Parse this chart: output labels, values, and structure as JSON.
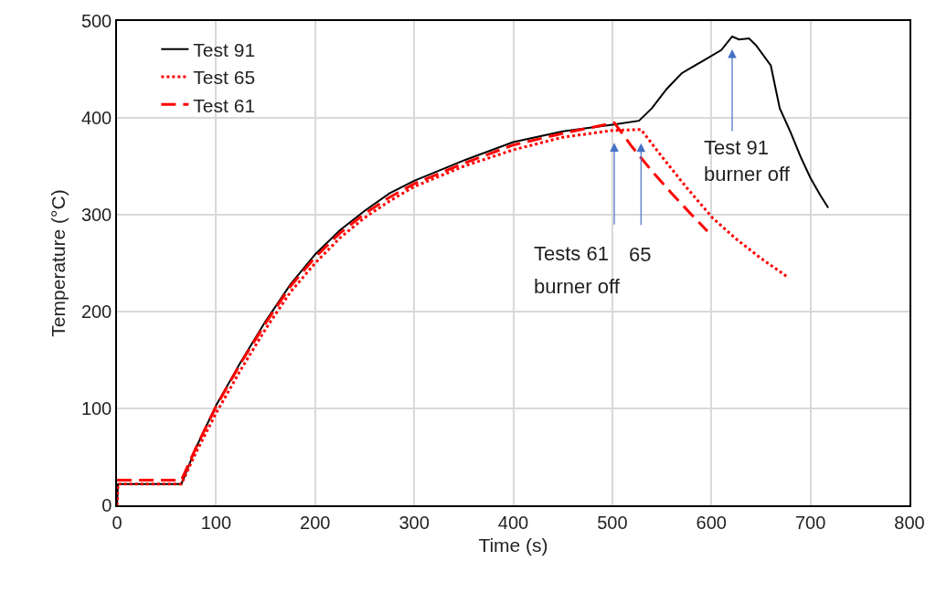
{
  "chart_data": {
    "type": "line",
    "xlabel": "Time (s)",
    "ylabel": "Temperature (°C)",
    "xlim": [
      0,
      800
    ],
    "xticks": [
      0,
      100,
      200,
      300,
      400,
      500,
      600,
      700,
      800
    ],
    "ylim": [
      0,
      500
    ],
    "yticks": [
      0,
      100,
      200,
      300,
      400,
      500
    ],
    "grid": true,
    "legend": "top left",
    "marker": "none",
    "series": [
      {
        "name": "Test 91",
        "color": "#000000",
        "line_style": "solid",
        "x": [
          0,
          1,
          65,
          80,
          100,
          125,
          150,
          175,
          200,
          225,
          250,
          275,
          300,
          350,
          400,
          450,
          500,
          527,
          540,
          555,
          570,
          590,
          610,
          621,
          628,
          638,
          645,
          660,
          669,
          680,
          690,
          700,
          710,
          718
        ],
        "values": [
          0,
          22,
          22,
          60,
          103,
          148,
          190,
          228,
          259,
          284,
          304,
          322,
          335,
          356,
          375,
          386,
          393,
          397,
          410,
          430,
          446,
          458,
          470,
          484,
          481,
          482,
          475,
          454,
          410,
          385,
          360,
          338,
          320,
          307
        ]
      },
      {
        "name": "Test 65",
        "color": "#ff0000",
        "line_style": "dotted",
        "x": [
          0,
          1,
          65,
          80,
          100,
          125,
          150,
          175,
          200,
          225,
          250,
          275,
          300,
          350,
          400,
          450,
          500,
          529,
          550,
          575,
          601,
          625,
          650,
          678
        ],
        "values": [
          0,
          22,
          22,
          55,
          95,
          140,
          182,
          220,
          250,
          276,
          297,
          314,
          329,
          350,
          367,
          380,
          387,
          388,
          360,
          328,
          297,
          275,
          255,
          235
        ]
      },
      {
        "name": "Test 61",
        "color": "#ff0000",
        "line_style": "dashed",
        "x": [
          0,
          65,
          80,
          100,
          125,
          150,
          175,
          200,
          225,
          250,
          275,
          300,
          350,
          400,
          450,
          502,
          520,
          540,
          560,
          580,
          596
        ],
        "values": [
          26,
          26,
          60,
          102,
          147,
          188,
          226,
          256,
          281,
          301,
          318,
          332,
          353,
          372,
          384,
          395,
          370,
          345,
          322,
          300,
          283
        ]
      }
    ],
    "annotations": [
      {
        "text": "Tests 61",
        "x": 502,
        "y": 395
      },
      {
        "text": "65",
        "x": 529,
        "y": 388
      },
      "burner off",
      {
        "text": "Test 91\nburner off",
        "x": 621,
        "y": 484
      }
    ]
  }
}
